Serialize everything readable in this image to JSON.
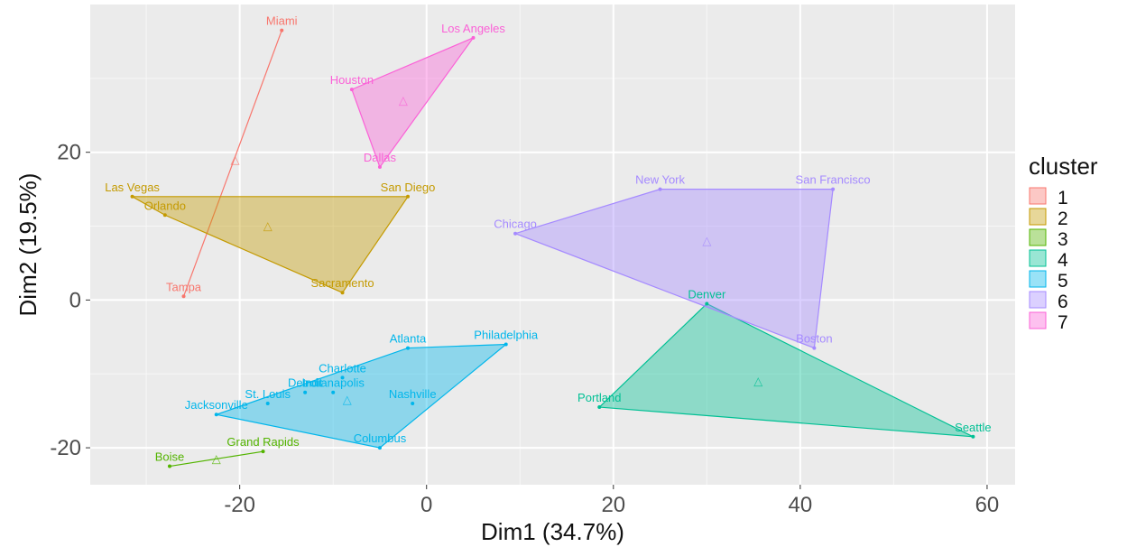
{
  "chart_data": {
    "type": "scatter",
    "subtype": "cluster-hull",
    "xlabel": "Dim1 (34.7%)",
    "ylabel": "Dim2 (19.5%)",
    "xlim": [
      -36,
      63
    ],
    "ylim": [
      -25,
      40
    ],
    "xticks": [
      -20,
      0,
      20,
      40,
      60
    ],
    "yticks": [
      -20,
      0,
      20
    ],
    "grid": true,
    "legend": {
      "title": "cluster",
      "position": "right"
    },
    "clusters": [
      {
        "name": "1",
        "color": "#F8766D",
        "centroid": [
          -20.5,
          19
        ],
        "points": [
          {
            "label": "Miami",
            "x": -15.5,
            "y": 36.5
          },
          {
            "label": "Tampa",
            "x": -26,
            "y": 0.5
          }
        ]
      },
      {
        "name": "2",
        "color": "#C49A00",
        "centroid": [
          -17,
          10
        ],
        "points": [
          {
            "label": "Las Vegas",
            "x": -31.5,
            "y": 14
          },
          {
            "label": "Orlando",
            "x": -28,
            "y": 11.5
          },
          {
            "label": "San Diego",
            "x": -2,
            "y": 14
          },
          {
            "label": "Sacramento",
            "x": -9,
            "y": 1
          }
        ]
      },
      {
        "name": "3",
        "color": "#53B400",
        "centroid": [
          -22.5,
          -21.5
        ],
        "points": [
          {
            "label": "Boise",
            "x": -27.5,
            "y": -22.5
          },
          {
            "label": "Grand Rapids",
            "x": -17.5,
            "y": -20.5
          }
        ]
      },
      {
        "name": "4",
        "color": "#00C094",
        "centroid": [
          35.5,
          -11
        ],
        "points": [
          {
            "label": "Denver",
            "x": 30,
            "y": -0.5
          },
          {
            "label": "Portland",
            "x": 18.5,
            "y": -14.5
          },
          {
            "label": "Seattle",
            "x": 58.5,
            "y": -18.5
          }
        ]
      },
      {
        "name": "5",
        "color": "#00B6EB",
        "centroid": [
          -8.5,
          -13.5
        ],
        "points": [
          {
            "label": "Atlanta",
            "x": -2,
            "y": -6.5
          },
          {
            "label": "Philadelphia",
            "x": 8.5,
            "y": -6
          },
          {
            "label": "Charlotte",
            "x": -9,
            "y": -10.5
          },
          {
            "label": "St. Louis",
            "x": -17,
            "y": -14
          },
          {
            "label": "Detroit",
            "x": -13,
            "y": -12.5
          },
          {
            "label": "Indianapolis",
            "x": -10,
            "y": -12.5
          },
          {
            "label": "Nashville",
            "x": -1.5,
            "y": -14
          },
          {
            "label": "Jacksonville",
            "x": -22.5,
            "y": -15.5
          },
          {
            "label": "Columbus",
            "x": -5,
            "y": -20
          }
        ]
      },
      {
        "name": "6",
        "color": "#A58AFF",
        "centroid": [
          30,
          8
        ],
        "points": [
          {
            "label": "New York",
            "x": 25,
            "y": 15
          },
          {
            "label": "San Francisco",
            "x": 43.5,
            "y": 15
          },
          {
            "label": "Chicago",
            "x": 9.5,
            "y": 9
          },
          {
            "label": "Boston",
            "x": 41.5,
            "y": -6.5
          }
        ]
      },
      {
        "name": "7",
        "color": "#FB61D7",
        "centroid": [
          -2.5,
          27
        ],
        "points": [
          {
            "label": "Los Angeles",
            "x": 5,
            "y": 35.5
          },
          {
            "label": "Houston",
            "x": -8,
            "y": 28.5
          },
          {
            "label": "Dallas",
            "x": -5,
            "y": 18
          }
        ]
      }
    ]
  }
}
